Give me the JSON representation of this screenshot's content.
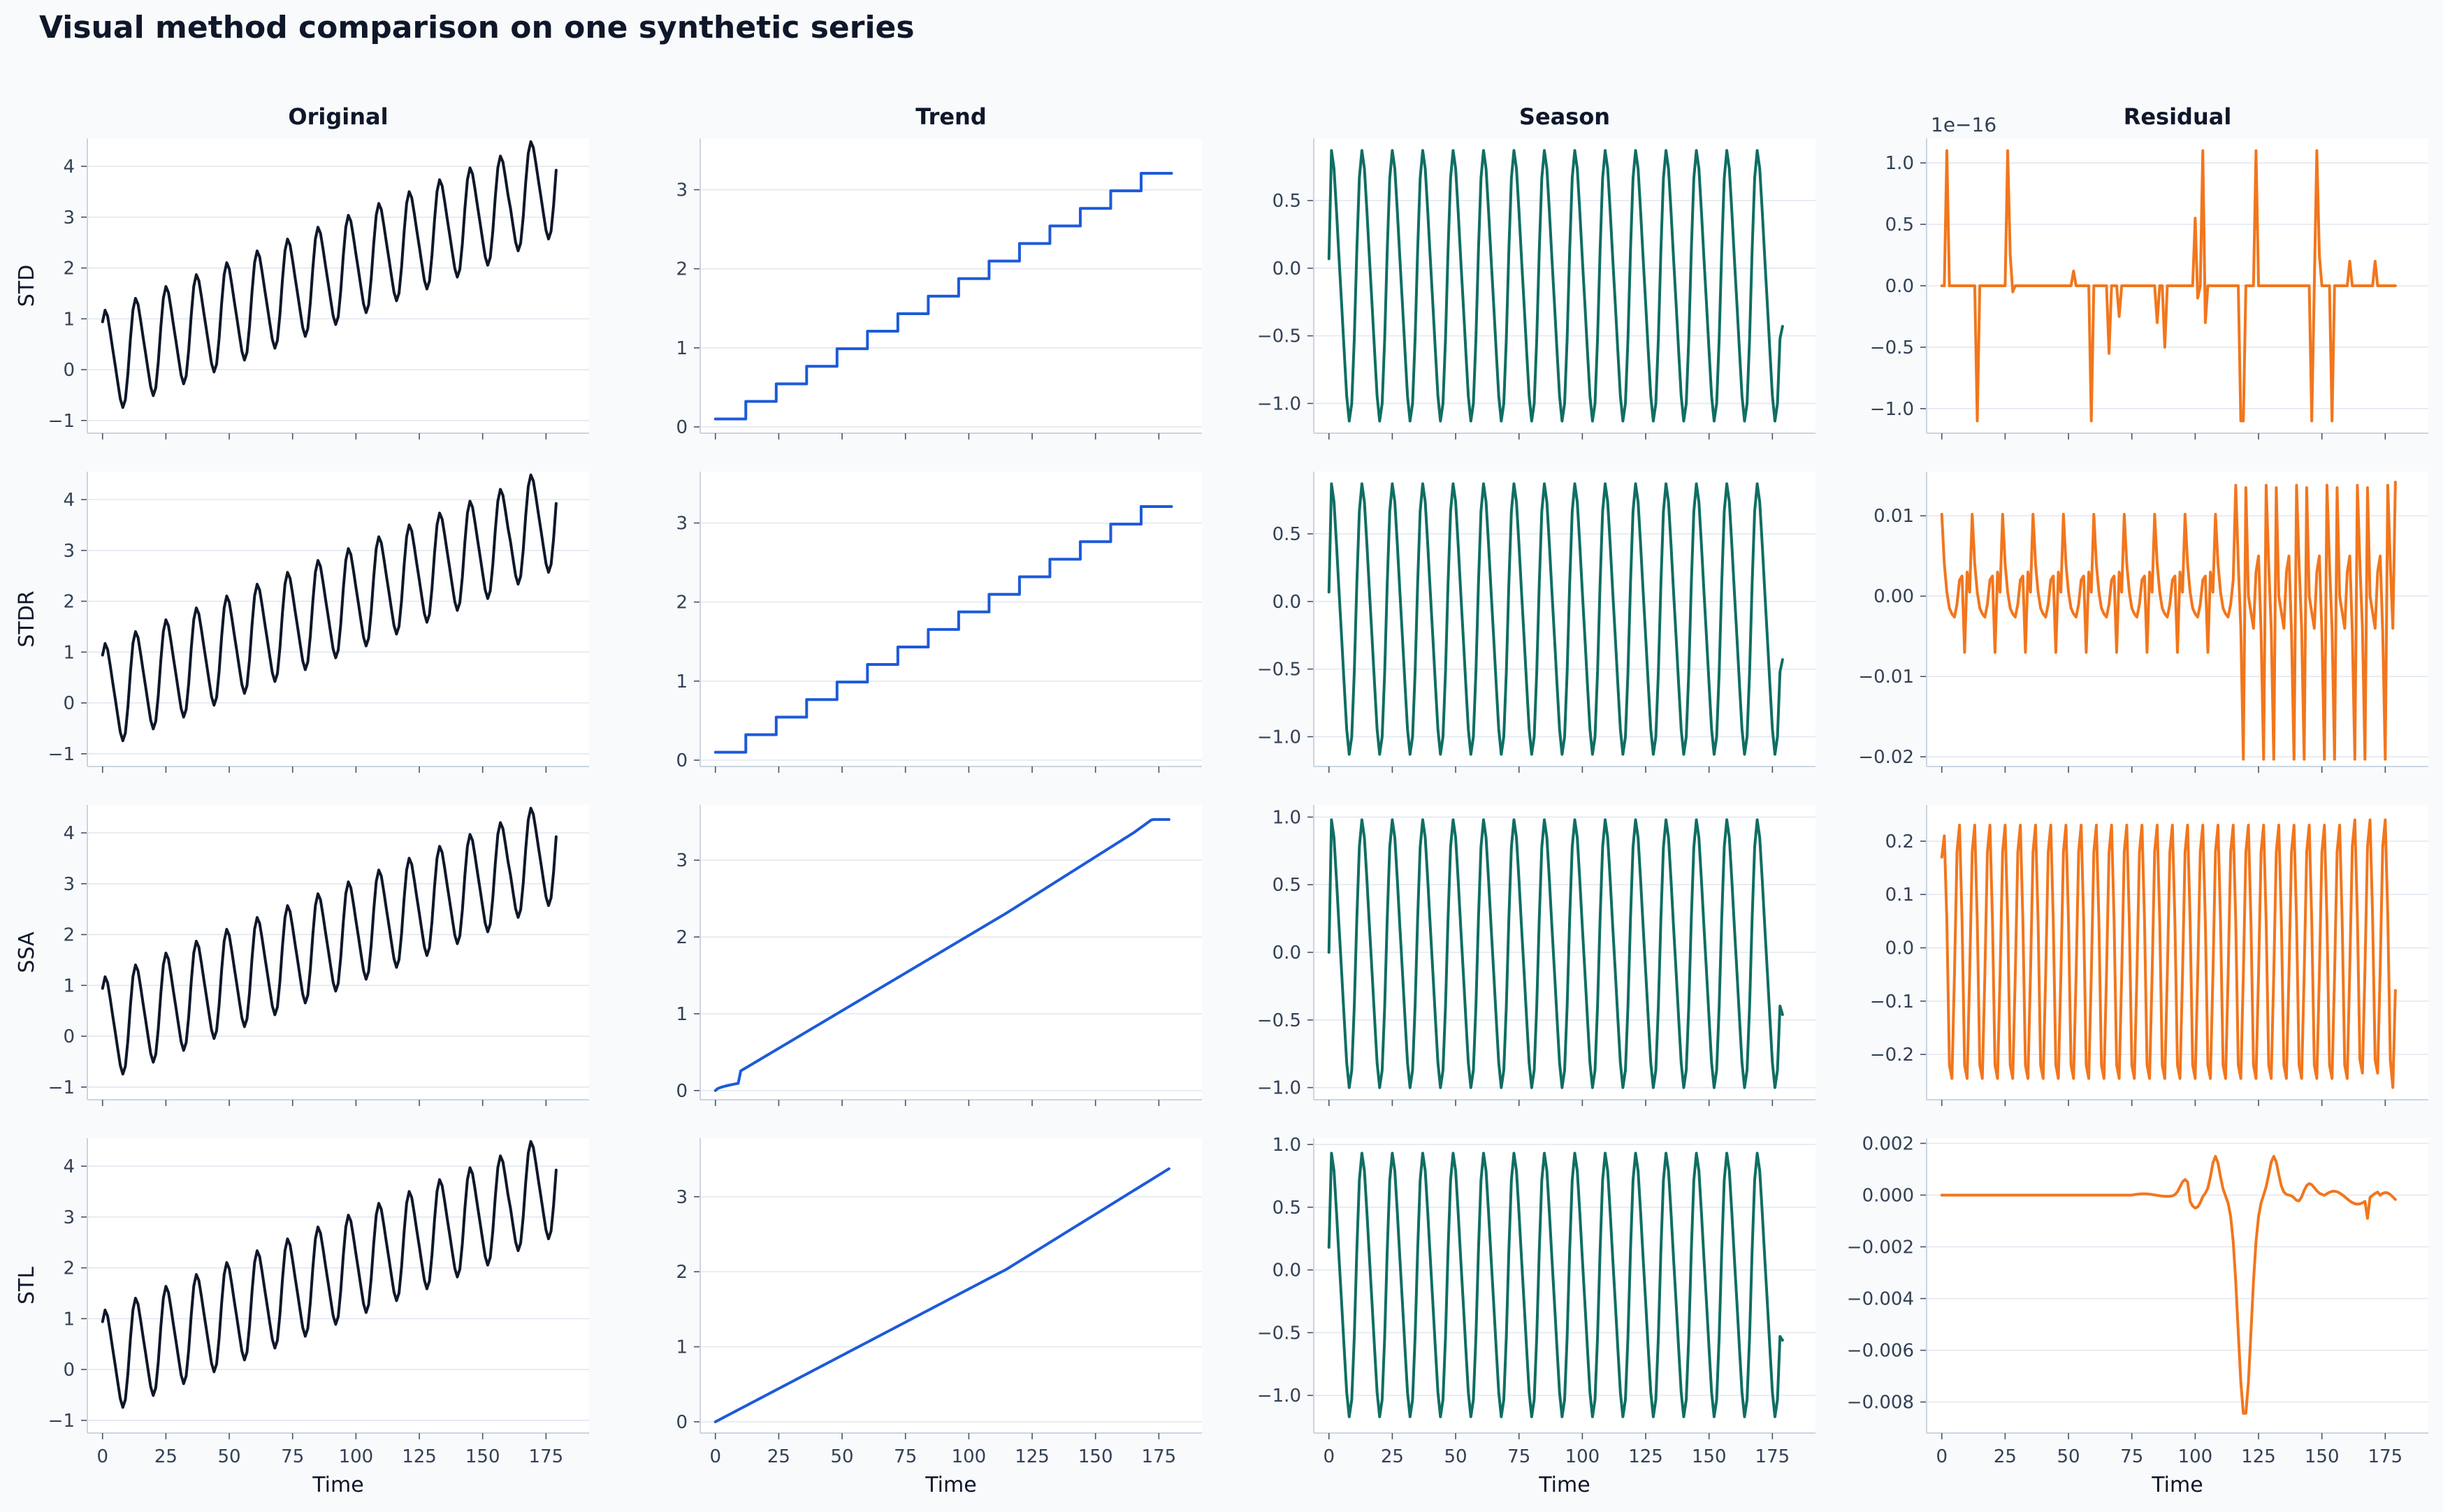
{
  "figure": {
    "title": "Visual method comparison on one synthetic series",
    "columns": [
      "Original",
      "Trend",
      "Season",
      "Residual"
    ],
    "rows": [
      "STD",
      "STDR",
      "SSA",
      "STL"
    ],
    "xlabel": "Time",
    "colors": {
      "background": "#f8fafc",
      "panel": "#ffffff",
      "grid": "#e2e8f0",
      "axis": "#cbd5e1",
      "original": "#0f172a",
      "trend": "#1d5ad9",
      "season": "#0f6e63",
      "residual": "#f2761c"
    }
  },
  "chart_data": {
    "type": "line",
    "x": {
      "min": 0,
      "max": 179,
      "step": 1
    },
    "xlim": [
      -6,
      192
    ],
    "xticks": [
      0,
      25,
      50,
      75,
      100,
      125,
      150,
      175
    ],
    "series_formulas": {
      "note_free": true
    },
    "panels": [
      {
        "row": "STD",
        "column": "Original",
        "kind": "original",
        "ylim": [
          -1.25,
          4.55
        ],
        "yticks": [
          -1,
          0,
          1,
          2,
          3,
          4
        ],
        "ytick_labels": [
          "−1",
          "0",
          "1",
          "2",
          "3",
          "4"
        ]
      },
      {
        "row": "STD",
        "column": "Trend",
        "kind": "trend_step",
        "ylim": [
          -0.08,
          3.65
        ],
        "yticks": [
          0,
          1,
          2,
          3
        ],
        "ytick_labels": [
          "0",
          "1",
          "2",
          "3"
        ]
      },
      {
        "row": "STD",
        "column": "Season",
        "kind": "season_std",
        "ylim": [
          -1.22,
          0.96
        ],
        "yticks": [
          -1.0,
          -0.5,
          0.0,
          0.5
        ],
        "ytick_labels": [
          "−1.0",
          "−0.5",
          "0.0",
          "0.5"
        ]
      },
      {
        "row": "STD",
        "column": "Residual",
        "kind": "residual_std",
        "ylim": [
          -1.2,
          1.2
        ],
        "yticks": [
          -1.0,
          -0.5,
          0.0,
          0.5,
          1.0
        ],
        "ytick_labels": [
          "−1.0",
          "−0.5",
          "0.0",
          "0.5",
          "1.0"
        ],
        "offset_label": "1e−16"
      },
      {
        "row": "STDR",
        "column": "Original",
        "kind": "original",
        "ylim": [
          -1.25,
          4.55
        ],
        "yticks": [
          -1,
          0,
          1,
          2,
          3,
          4
        ],
        "ytick_labels": [
          "−1",
          "0",
          "1",
          "2",
          "3",
          "4"
        ]
      },
      {
        "row": "STDR",
        "column": "Trend",
        "kind": "trend_step",
        "ylim": [
          -0.08,
          3.65
        ],
        "yticks": [
          0,
          1,
          2,
          3
        ],
        "ytick_labels": [
          "0",
          "1",
          "2",
          "3"
        ]
      },
      {
        "row": "STDR",
        "column": "Season",
        "kind": "season_std",
        "ylim": [
          -1.22,
          0.96
        ],
        "yticks": [
          -1.0,
          -0.5,
          0.0,
          0.5
        ],
        "ytick_labels": [
          "−1.0",
          "−0.5",
          "0.0",
          "0.5"
        ]
      },
      {
        "row": "STDR",
        "column": "Residual",
        "kind": "residual_stdr",
        "ylim": [
          -0.0212,
          0.0155
        ],
        "yticks": [
          -0.02,
          -0.01,
          0.0,
          0.01
        ],
        "ytick_labels": [
          "−0.02",
          "−0.01",
          "0.00",
          "0.01"
        ]
      },
      {
        "row": "SSA",
        "column": "Original",
        "kind": "original",
        "ylim": [
          -1.25,
          4.55
        ],
        "yticks": [
          -1,
          0,
          1,
          2,
          3,
          4
        ],
        "ytick_labels": [
          "−1",
          "0",
          "1",
          "2",
          "3",
          "4"
        ]
      },
      {
        "row": "SSA",
        "column": "Trend",
        "kind": "trend_ssa",
        "ylim": [
          -0.12,
          3.72
        ],
        "yticks": [
          0,
          1,
          2,
          3
        ],
        "ytick_labels": [
          "0",
          "1",
          "2",
          "3"
        ]
      },
      {
        "row": "SSA",
        "column": "Season",
        "kind": "season_ssa",
        "ylim": [
          -1.09,
          1.09
        ],
        "yticks": [
          -1.0,
          -0.5,
          0.0,
          0.5,
          1.0
        ],
        "ytick_labels": [
          "−1.0",
          "−0.5",
          "0.0",
          "0.5",
          "1.0"
        ]
      },
      {
        "row": "SSA",
        "column": "Residual",
        "kind": "residual_ssa",
        "ylim": [
          -0.285,
          0.268
        ],
        "yticks": [
          -0.2,
          -0.1,
          0.0,
          0.1,
          0.2
        ],
        "ytick_labels": [
          "−0.2",
          "−0.1",
          "0.0",
          "0.1",
          "0.2"
        ]
      },
      {
        "row": "STL",
        "column": "Original",
        "kind": "original",
        "ylim": [
          -1.25,
          4.55
        ],
        "yticks": [
          -1,
          0,
          1,
          2,
          3,
          4
        ],
        "ytick_labels": [
          "−1",
          "0",
          "1",
          "2",
          "3",
          "4"
        ]
      },
      {
        "row": "STL",
        "column": "Trend",
        "kind": "trend_stl",
        "ylim": [
          -0.15,
          3.78
        ],
        "yticks": [
          0,
          1,
          2,
          3
        ],
        "ytick_labels": [
          "0",
          "1",
          "2",
          "3"
        ]
      },
      {
        "row": "STL",
        "column": "Season",
        "kind": "season_stl",
        "ylim": [
          -1.3,
          1.05
        ],
        "yticks": [
          -1.0,
          -0.5,
          0.0,
          0.5,
          1.0
        ],
        "ytick_labels": [
          "−1.0",
          "−0.5",
          "0.0",
          "0.5",
          "1.0"
        ]
      },
      {
        "row": "STL",
        "column": "Residual",
        "kind": "residual_stl",
        "ylim": [
          -0.0092,
          0.0022
        ],
        "yticks": [
          -0.008,
          -0.006,
          -0.004,
          -0.002,
          0.0,
          0.002
        ],
        "ytick_labels": [
          "−0.008",
          "−0.006",
          "−0.004",
          "−0.002",
          "0.000",
          "0.002"
        ]
      }
    ]
  }
}
